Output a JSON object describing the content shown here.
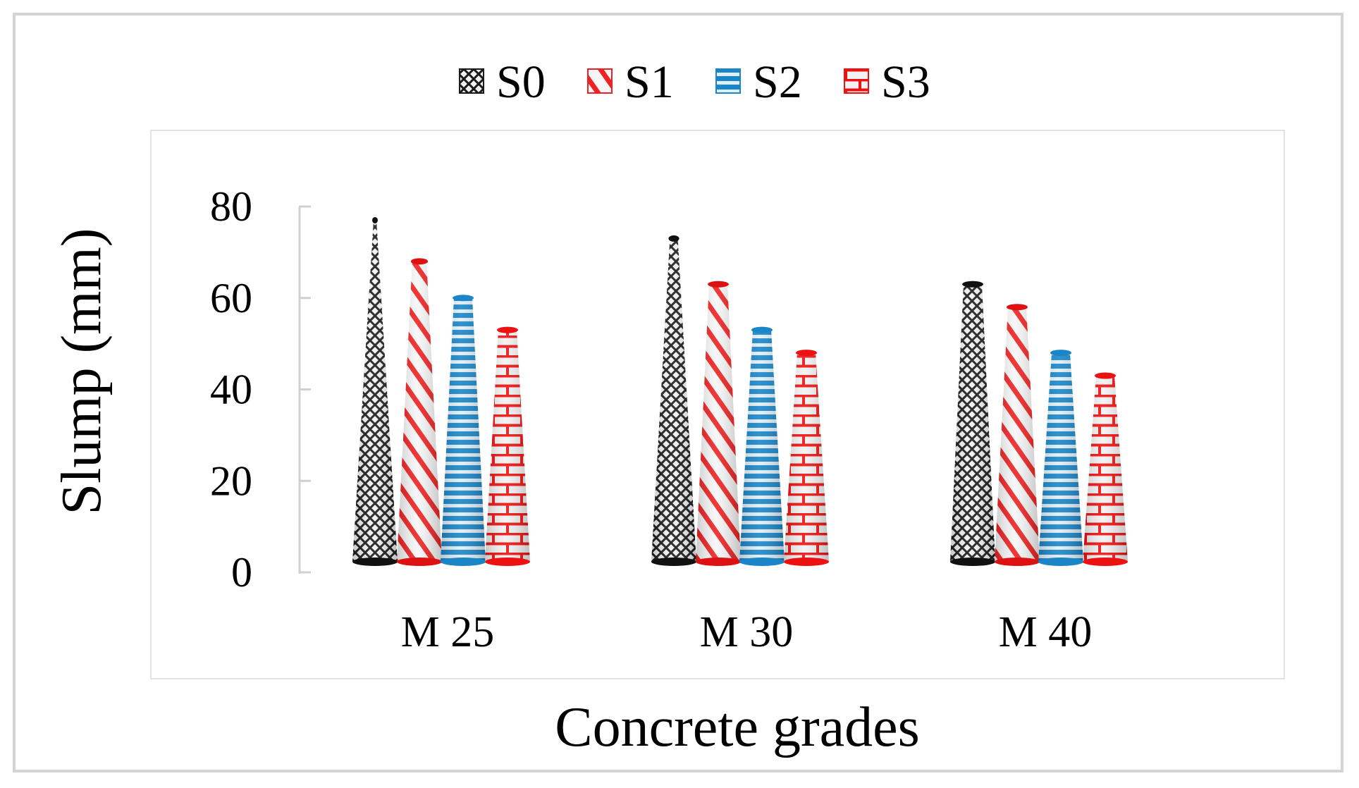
{
  "chart_data": {
    "type": "bar",
    "title": "",
    "xlabel": "Concrete grades",
    "ylabel": "Slump (mm)",
    "ylim": [
      0,
      80
    ],
    "yticks": [
      0,
      20,
      40,
      60,
      80
    ],
    "categories": [
      "M 25",
      "M 30",
      "M 40"
    ],
    "legend_position": "top",
    "series": [
      {
        "name": "S0",
        "values": [
          77,
          73,
          63
        ],
        "color": "#1a1a1a",
        "pattern": "crosshatch"
      },
      {
        "name": "S1",
        "values": [
          68,
          63,
          58
        ],
        "color": "#ee2222",
        "pattern": "diagonal"
      },
      {
        "name": "S2",
        "values": [
          60,
          53,
          48
        ],
        "color": "#1a86c8",
        "pattern": "horizontal"
      },
      {
        "name": "S3",
        "values": [
          53,
          48,
          43
        ],
        "color": "#ee1111",
        "pattern": "brick"
      }
    ]
  }
}
